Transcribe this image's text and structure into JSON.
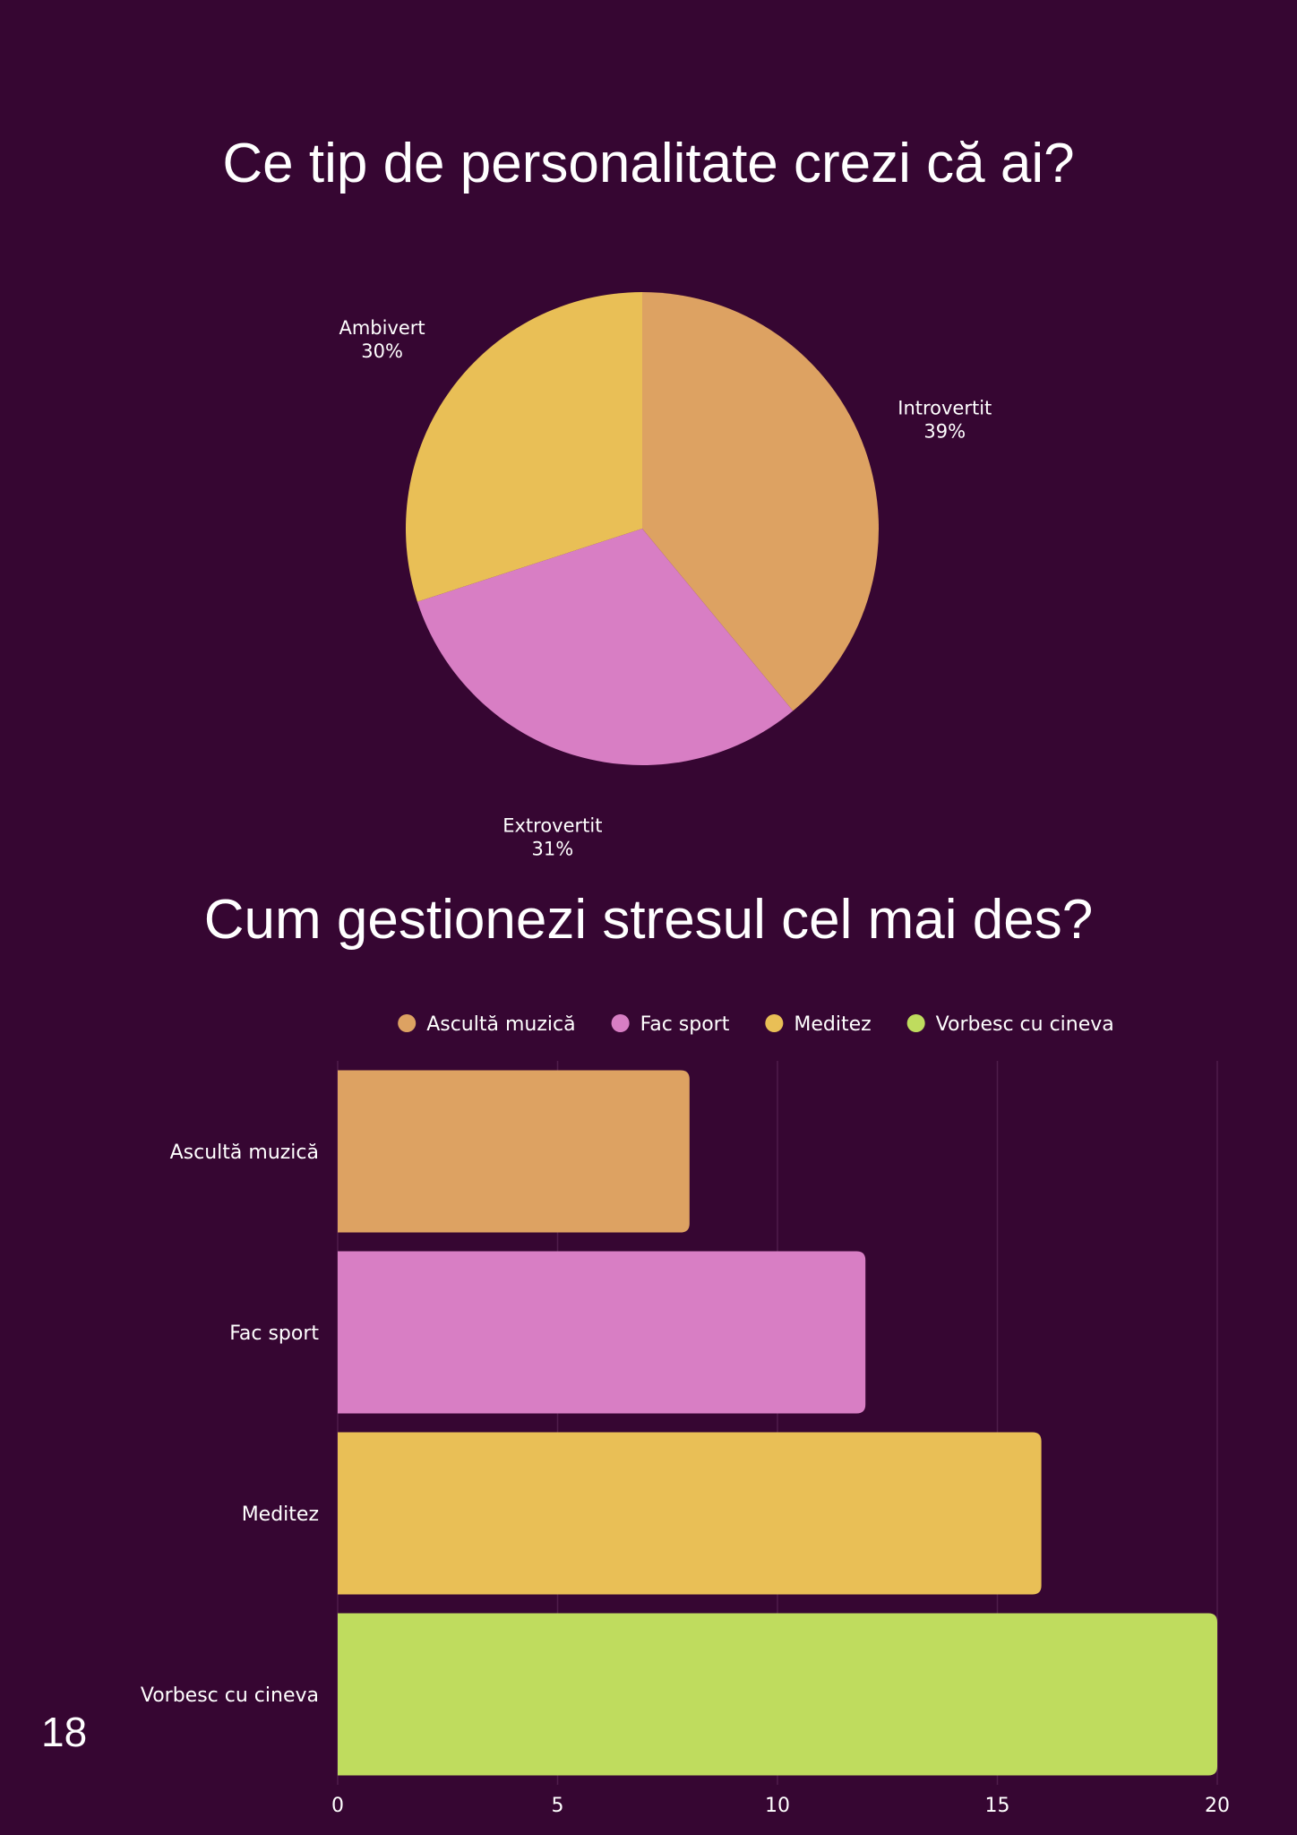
{
  "page_number": "18",
  "chart_data": [
    {
      "type": "pie",
      "title": "Ce tip de personalitate crezi că ai?",
      "categories": [
        "Introvertit",
        "Extrovertit",
        "Ambivert"
      ],
      "values": [
        39,
        31,
        30
      ],
      "value_labels": [
        "39%",
        "31%",
        "30%"
      ],
      "colors": [
        "#dda262",
        "#d87ec4",
        "#e9bf56"
      ],
      "start_angle_deg": 0,
      "direction": "clockwise"
    },
    {
      "type": "bar",
      "orientation": "horizontal",
      "title": "Cum gestionezi stresul cel mai des?",
      "categories": [
        "Ascultă muzică",
        "Fac sport",
        "Meditez",
        "Vorbesc cu cineva"
      ],
      "values": [
        8,
        12,
        16,
        20
      ],
      "colors": [
        "#dda262",
        "#d87ec4",
        "#e9bf56",
        "#bfdc5e"
      ],
      "xlim": [
        0,
        20
      ],
      "xticks": [
        "0",
        "5",
        "10",
        "15",
        "20"
      ],
      "grid": true,
      "legend": {
        "position": "top",
        "entries": [
          "Ascultă muzică",
          "Fac sport",
          "Meditez",
          "Vorbesc cu cineva"
        ]
      }
    }
  ]
}
